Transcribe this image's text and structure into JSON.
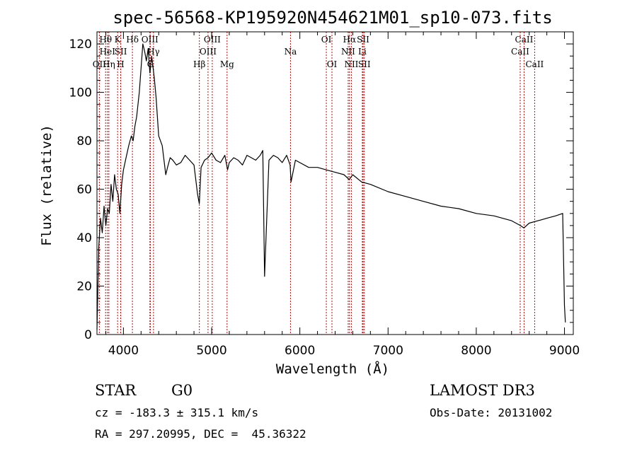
{
  "chart_data": {
    "type": "line",
    "title": "spec-56568-KP195920N454621M01_sp10-073.fits",
    "xlabel": "Wavelength (Å)",
    "ylabel": "Flux (relative)",
    "xlim": [
      3700,
      9100
    ],
    "ylim": [
      0,
      125
    ],
    "xticks": [
      4000,
      5000,
      6000,
      7000,
      8000,
      9000
    ],
    "yticks": [
      0,
      20,
      40,
      60,
      80,
      100,
      120
    ],
    "series": [
      {
        "name": "spectrum",
        "x": [
          3700,
          3720,
          3740,
          3760,
          3780,
          3800,
          3820,
          3840,
          3860,
          3880,
          3900,
          3920,
          3940,
          3960,
          3980,
          4000,
          4030,
          4060,
          4090,
          4110,
          4130,
          4150,
          4180,
          4200,
          4220,
          4240,
          4260,
          4280,
          4300,
          4320,
          4350,
          4370,
          4400,
          4420,
          4440,
          4460,
          4480,
          4500,
          4530,
          4560,
          4600,
          4650,
          4700,
          4750,
          4800,
          4840,
          4860,
          4880,
          4920,
          4960,
          5000,
          5050,
          5100,
          5150,
          5180,
          5200,
          5250,
          5300,
          5350,
          5400,
          5450,
          5500,
          5550,
          5580,
          5600,
          5650,
          5700,
          5750,
          5800,
          5850,
          5890,
          5900,
          5950,
          6000,
          6100,
          6200,
          6300,
          6400,
          6500,
          6560,
          6600,
          6700,
          6800,
          7000,
          7200,
          7400,
          7600,
          7800,
          8000,
          8200,
          8400,
          8500,
          8540,
          8600,
          8700,
          8800,
          8900,
          8980,
          9000,
          9010
        ],
        "values": [
          2,
          36,
          48,
          42,
          53,
          45,
          52,
          50,
          62,
          55,
          66,
          60,
          58,
          50,
          62,
          68,
          73,
          78,
          82,
          80,
          86,
          90,
          100,
          110,
          120,
          117,
          113,
          118,
          108,
          115,
          106,
          98,
          82,
          80,
          78,
          72,
          66,
          69,
          73,
          72,
          70,
          71,
          74,
          72,
          70,
          58,
          54,
          69,
          72,
          73,
          75,
          72,
          71,
          74,
          68,
          71,
          73,
          72,
          70,
          74,
          73,
          72,
          74,
          76,
          24,
          72,
          74,
          73,
          71,
          74,
          70,
          63,
          72,
          71,
          69,
          69,
          68,
          67,
          66,
          64,
          66,
          63,
          62,
          59,
          57,
          55,
          53,
          52,
          50,
          49,
          47,
          45,
          44,
          46,
          47,
          48,
          49,
          50,
          12,
          5
        ]
      }
    ],
    "lines": [
      {
        "label": "OII",
        "x": 3727,
        "row": 2
      },
      {
        "label": "Hθ",
        "x": 3798,
        "row": 0
      },
      {
        "label": "HeI",
        "x": 3819,
        "row": 1
      },
      {
        "label": "Hη",
        "x": 3835,
        "row": 2
      },
      {
        "label": "K",
        "x": 3934,
        "row": 0
      },
      {
        "label": "SII",
        "x": 3970,
        "row": 1
      },
      {
        "label": "H",
        "x": 3969,
        "row": 2
      },
      {
        "label": "Hδ",
        "x": 4102,
        "row": 0
      },
      {
        "label": "OIII",
        "x": 4300,
        "row": 0
      },
      {
        "label": "G",
        "x": 4305,
        "row": 2
      },
      {
        "label": "Hγ",
        "x": 4341,
        "row": 1
      },
      {
        "label": "Hβ",
        "x": 4861,
        "row": 2
      },
      {
        "label": "OIII",
        "x": 4959,
        "row": 1
      },
      {
        "label": "OIII",
        "x": 5007,
        "row": 0
      },
      {
        "label": "Mg",
        "x": 5175,
        "row": 2
      },
      {
        "label": "Na",
        "x": 5894,
        "row": 1
      },
      {
        "label": "OI",
        "x": 6300,
        "row": 0
      },
      {
        "label": "OI",
        "x": 6364,
        "row": 2
      },
      {
        "label": "NII",
        "x": 6548,
        "row": 1
      },
      {
        "label": "Hα",
        "x": 6563,
        "row": 0
      },
      {
        "label": "NII",
        "x": 6584,
        "row": 2
      },
      {
        "label": "Li",
        "x": 6708,
        "row": 1
      },
      {
        "label": "SII",
        "x": 6717,
        "row": 0
      },
      {
        "label": "SII",
        "x": 6731,
        "row": 2
      },
      {
        "label": "CaII",
        "x": 8498,
        "row": 1
      },
      {
        "label": "CaII",
        "x": 8542,
        "row": 0
      },
      {
        "label": "CaII",
        "x": 8662,
        "row": 2
      }
    ]
  },
  "info": {
    "class": "STAR",
    "subclass": "G0",
    "survey": "LAMOST DR3",
    "cz": "cz = -183.3 ± 315.1 km/s",
    "obsdate": "Obs-Date: 20131002",
    "radec": "RA = 297.20995, DEC =  45.36322"
  },
  "colors": {
    "spectrum": "#000000",
    "line_marker": "#cc0000",
    "axis": "#000000"
  }
}
